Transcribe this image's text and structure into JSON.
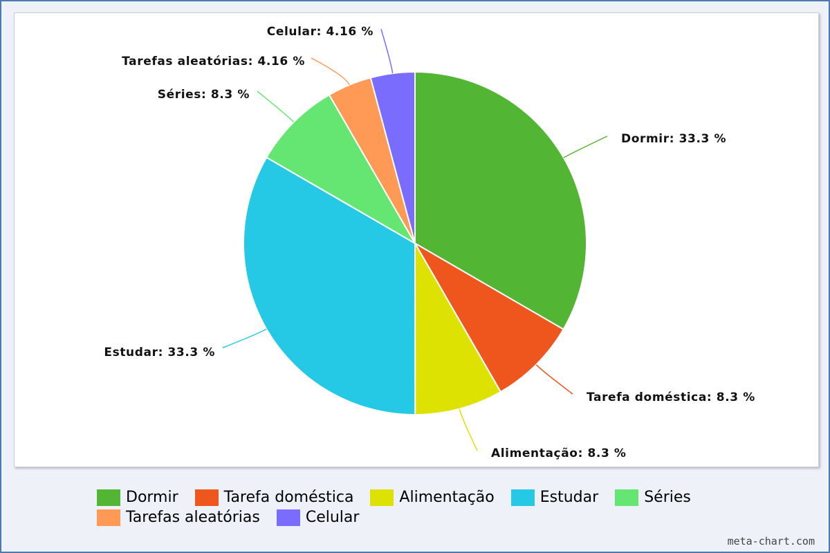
{
  "chart_data": {
    "type": "pie",
    "slices": [
      {
        "label": "Dormir",
        "value": 33.3,
        "display": "Dormir: 33.3 %",
        "color": "#52b533"
      },
      {
        "label": "Tarefa doméstica",
        "value": 8.3,
        "display": "Tarefa doméstica: 8.3 %",
        "color": "#ef561e"
      },
      {
        "label": "Alimentação",
        "value": 8.3,
        "display": "Alimentação: 8.3 %",
        "color": "#dde202"
      },
      {
        "label": "Estudar",
        "value": 33.3,
        "display": "Estudar: 33.3 %",
        "color": "#26c9e5"
      },
      {
        "label": "Séries",
        "value": 8.3,
        "display": "Séries: 8.3 %",
        "color": "#65e673"
      },
      {
        "label": "Tarefas aleatórias",
        "value": 4.16,
        "display": "Tarefas aleatórias: 4.16 %",
        "color": "#ff9956"
      },
      {
        "label": "Celular",
        "value": 4.16,
        "display": "Celular: 4.16 %",
        "color": "#7a6dfd"
      }
    ],
    "start_angle_deg": 0,
    "direction": "clockwise",
    "legend_position": "bottom"
  },
  "legend": {
    "rows": [
      [
        0,
        1,
        2,
        3,
        4
      ],
      [
        5,
        6
      ]
    ]
  },
  "watermark": "meta-chart.com"
}
